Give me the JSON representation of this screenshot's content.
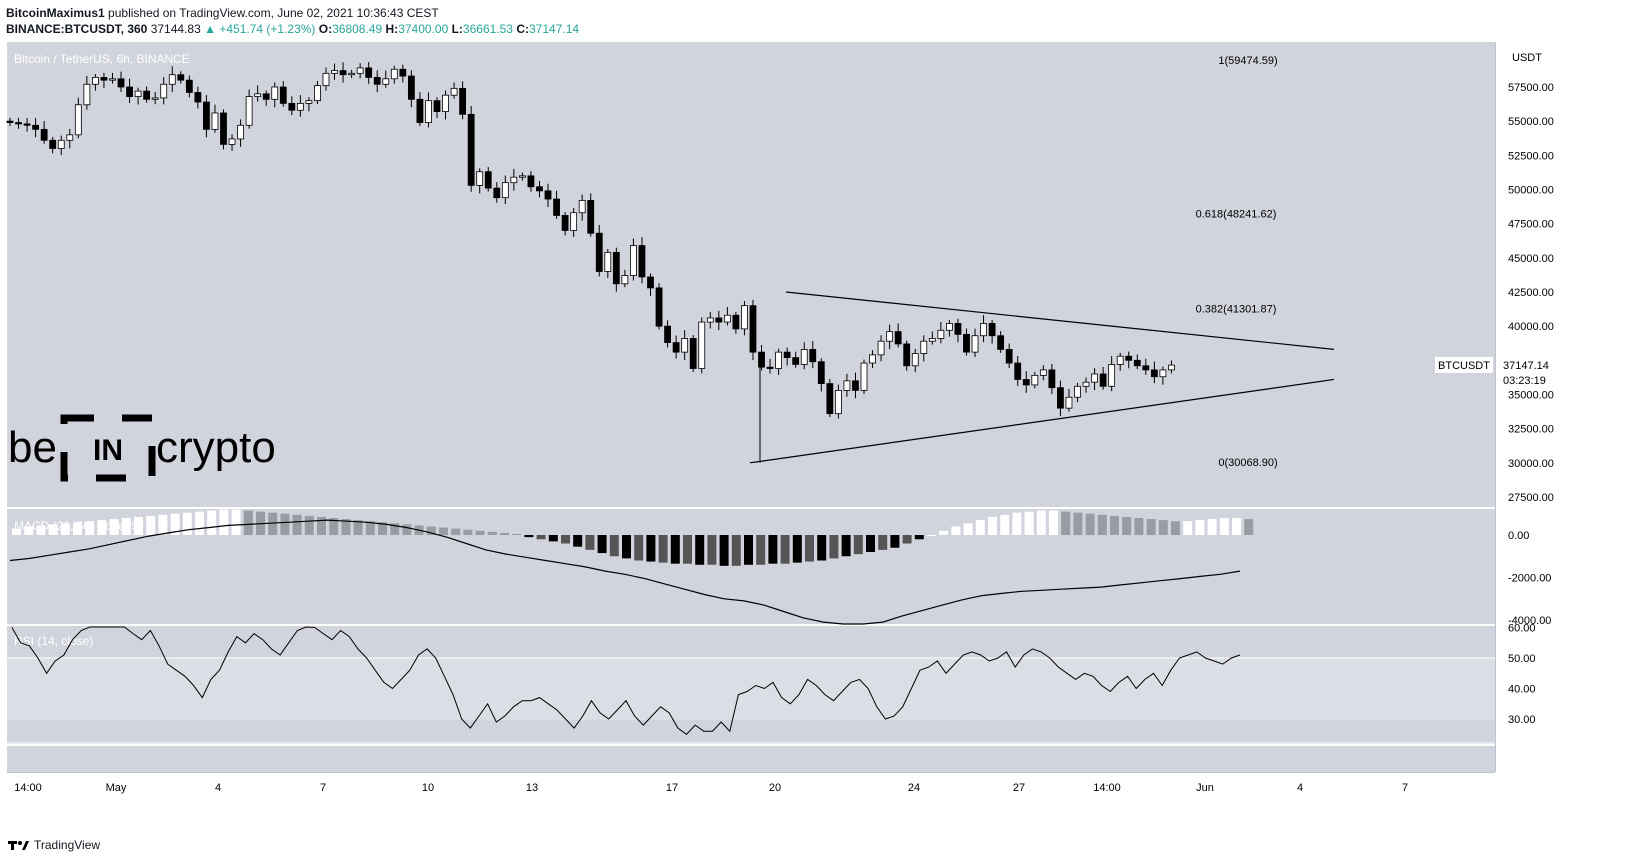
{
  "header": {
    "author": "BitcoinMaximus1",
    "published_text": "published on TradingView.com, June 02, 2021 10:36:43 CEST",
    "symbol_line": "BINANCE:BTCUSDT, 360",
    "last": "37144.83",
    "change_arrow": "▲",
    "change": "+451.74 (+1.23%)",
    "o_label": "O:",
    "o": "36808.49",
    "h_label": "H:",
    "h": "37400.00",
    "l_label": "L:",
    "l": "36661.53",
    "c_label": "C:",
    "c": "37147.14"
  },
  "pane_title": "Bitcoin / TetherUS, 6h, BINANCE",
  "macd_label": "MACD (21, 50, close, 9)",
  "rsi_label": "RSI (14, close)",
  "watermark": {
    "left": "be",
    "middle": "IN",
    "right": "crypto"
  },
  "price_tag": {
    "symbol": "BTCUSDT",
    "price": "37147.14",
    "countdown": "03:23:19"
  },
  "footer": {
    "brand": "TradingView"
  },
  "colors": {
    "background": "#d1d4dc",
    "rsi_band": "#dcdee5",
    "candle_up": "#ffffff",
    "candle_down": "#000000",
    "line": "#000000"
  },
  "chart_data": [
    {
      "type": "candlestick",
      "title": "Bitcoin / TetherUS, 6h, BINANCE",
      "unit": "USDT",
      "ylim": [
        26250,
        60500
      ],
      "y_ticks": [
        "57500.00",
        "55000.00",
        "52500.00",
        "50000.00",
        "47500.00",
        "45000.00",
        "42500.00",
        "40000.00",
        "37500.00",
        "35000.00",
        "32500.00",
        "30000.00",
        "27500.00"
      ],
      "x_ticks": [
        "14:00",
        "May",
        "4",
        "7",
        "10",
        "13",
        "17",
        "20",
        "24",
        "27",
        "14:00",
        "Jun",
        "4",
        "7"
      ],
      "closes": [
        54900,
        54800,
        54700,
        54400,
        53600,
        53000,
        53600,
        54000,
        56200,
        57700,
        58200,
        58000,
        58100,
        57500,
        56800,
        57200,
        56600,
        56700,
        57700,
        58400,
        58000,
        57100,
        56400,
        54400,
        55600,
        53300,
        53700,
        54700,
        56800,
        57000,
        56600,
        57500,
        56300,
        55800,
        56300,
        56500,
        57600,
        58500,
        58700,
        58400,
        58500,
        58900,
        58200,
        57700,
        58100,
        58800,
        58300,
        56600,
        54900,
        56500,
        55700,
        56900,
        57400,
        55500,
        50300,
        51300,
        50100,
        49400,
        50500,
        50900,
        51000,
        50200,
        49900,
        49300,
        48100,
        47000,
        48300,
        49200,
        46800,
        44000,
        45400,
        43100,
        43700,
        45900,
        43600,
        42800,
        40000,
        38800,
        38100,
        39100,
        36900,
        40300,
        40600,
        40300,
        40800,
        39800,
        41500,
        38100,
        37000,
        36900,
        38100,
        37700,
        37200,
        38300,
        37400,
        35800,
        33600,
        35300,
        36000,
        35300,
        37300,
        37900,
        38900,
        39600,
        38700,
        37100,
        38000,
        38900,
        39100,
        39700,
        40200,
        39400,
        38100,
        39300,
        40200,
        39300,
        38300,
        37300,
        36100,
        35700,
        36400,
        36800,
        35500,
        34000,
        34800,
        35600,
        35900,
        36500,
        35600,
        37200,
        37800,
        37500,
        37100,
        36800,
        36300,
        36800,
        37150
      ],
      "annotations": [
        {
          "text": "1(59474.59)",
          "price": 59474.59
        },
        {
          "text": "0.618(48241.62)",
          "price": 48241.62
        },
        {
          "text": "0.382(41301.87)",
          "price": 41301.87
        },
        {
          "text": "0(30068.90)",
          "price": 30068.9
        }
      ],
      "trendlines": [
        {
          "name": "upper",
          "from": {
            "date": "May 20",
            "price": 42500
          },
          "to": {
            "date": "Jun 5",
            "price": 38300
          }
        },
        {
          "name": "lower",
          "from": {
            "date": "May 19",
            "price": 30000
          },
          "to": {
            "date": "Jun 5",
            "price": 36100
          }
        }
      ]
    },
    {
      "type": "bar",
      "title": "MACD (21, 50, close, 9)",
      "y_ticks": [
        "0.00",
        "-2000.00",
        "-4000.00"
      ],
      "ylim": [
        -4200,
        1300
      ],
      "histogram": [
        300,
        400,
        450,
        500,
        550,
        600,
        650,
        700,
        750,
        800,
        850,
        900,
        950,
        1000,
        1050,
        1100,
        1150,
        1200,
        1200,
        1150,
        1100,
        1050,
        1000,
        950,
        900,
        850,
        800,
        750,
        700,
        650,
        600,
        550,
        500,
        450,
        400,
        350,
        300,
        250,
        200,
        150,
        100,
        50,
        -100,
        -200,
        -300,
        -400,
        -550,
        -700,
        -850,
        -1000,
        -1100,
        -1200,
        -1250,
        -1300,
        -1350,
        -1350,
        -1400,
        -1400,
        -1450,
        -1450,
        -1400,
        -1400,
        -1350,
        -1350,
        -1300,
        -1250,
        -1200,
        -1100,
        -1000,
        -900,
        -800,
        -700,
        -600,
        -400,
        -200,
        0,
        200,
        400,
        550,
        700,
        850,
        950,
        1050,
        1100,
        1150,
        1150,
        1100,
        1050,
        1000,
        950,
        900,
        850,
        800,
        750,
        700,
        650,
        650,
        700,
        750,
        800,
        800,
        750
      ],
      "signal_line": [
        -1200,
        -1100,
        -950,
        -800,
        -650,
        -450,
        -250,
        -50,
        100,
        250,
        350,
        450,
        500,
        550,
        600,
        650,
        700,
        650,
        600,
        500,
        350,
        150,
        -100,
        -400,
        -700,
        -900,
        -1050,
        -1200,
        -1350,
        -1500,
        -1700,
        -1850,
        -2050,
        -2300,
        -2550,
        -2800,
        -3000,
        -3100,
        -3300,
        -3600,
        -3900,
        -4100,
        -4300,
        -4500,
        -4100,
        -3800,
        -3550,
        -3300,
        -3050,
        -2850,
        -2750,
        -2650,
        -2600,
        -2550,
        -2500,
        -2450,
        -2350,
        -2250,
        -2150,
        -2050,
        -1950,
        -1850,
        -1700
      ]
    },
    {
      "type": "line",
      "title": "RSI (14, close)",
      "y_ticks": [
        "60.00",
        "50.00",
        "40.00",
        "30.00"
      ],
      "ylim": [
        22,
        62
      ],
      "values": [
        60,
        55,
        54,
        50,
        45,
        49,
        51,
        56,
        59,
        62,
        65,
        64,
        63,
        61,
        58,
        56,
        59,
        54,
        48,
        46,
        44,
        41,
        37,
        43,
        46,
        52,
        57,
        55,
        58,
        56,
        53,
        51,
        55,
        59,
        61,
        60,
        58,
        56,
        59,
        57,
        53,
        50,
        46,
        42,
        40,
        43,
        46,
        51,
        53,
        50,
        44,
        38,
        30,
        27,
        31,
        35,
        29,
        31,
        34,
        36,
        36,
        37,
        35,
        33,
        30,
        27,
        31,
        36,
        32,
        30,
        33,
        36,
        31,
        28,
        31,
        34,
        32,
        27,
        25,
        28,
        26,
        26,
        29,
        26,
        38,
        39,
        41,
        40,
        42,
        37,
        35,
        38,
        43,
        41,
        38,
        36,
        39,
        42,
        43,
        40,
        34,
        30,
        31,
        34,
        40,
        46,
        47,
        49,
        45,
        48,
        51,
        52,
        51,
        49,
        50,
        52,
        47,
        51,
        53,
        52,
        50,
        47,
        45,
        43,
        45,
        44,
        41,
        39,
        42,
        44,
        40,
        43,
        45,
        41,
        46,
        50,
        51,
        52,
        50,
        49,
        48,
        50,
        51
      ],
      "bands": [
        30,
        50,
        70
      ]
    }
  ]
}
